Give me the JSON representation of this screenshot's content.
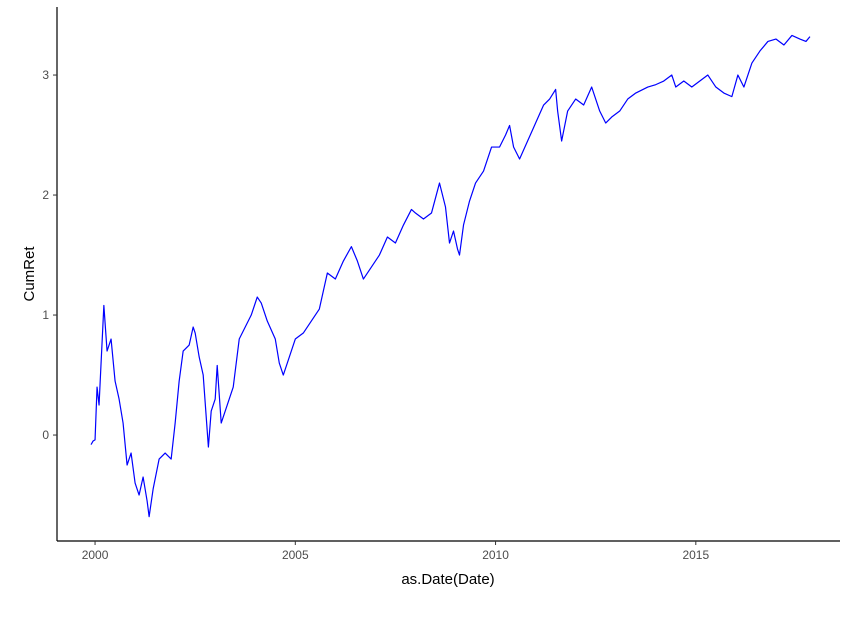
{
  "chart_data": {
    "type": "line",
    "x_label": "as.Date(Date)",
    "y_label": "CumRet",
    "x": [
      1999.9,
      1999.95,
      2000.0,
      2000.05,
      2000.1,
      2000.22,
      2000.3,
      2000.4,
      2000.5,
      2000.6,
      2000.7,
      2000.8,
      2000.9,
      2001.0,
      2001.1,
      2001.2,
      2001.3,
      2001.35,
      2001.45,
      2001.6,
      2001.75,
      2001.9,
      2002.0,
      2002.1,
      2002.2,
      2002.35,
      2002.45,
      2002.5,
      2002.6,
      2002.7,
      2002.83,
      2002.9,
      2003.0,
      2003.05,
      2003.15,
      2003.3,
      2003.45,
      2003.6,
      2003.75,
      2003.9,
      2004.05,
      2004.15,
      2004.3,
      2004.5,
      2004.6,
      2004.7,
      2004.85,
      2005.0,
      2005.2,
      2005.4,
      2005.6,
      2005.8,
      2006.0,
      2006.2,
      2006.4,
      2006.55,
      2006.7,
      2006.9,
      2007.1,
      2007.3,
      2007.5,
      2007.7,
      2007.9,
      2008.0,
      2008.2,
      2008.4,
      2008.6,
      2008.75,
      2008.85,
      2008.95,
      2009.05,
      2009.1,
      2009.2,
      2009.35,
      2009.5,
      2009.7,
      2009.9,
      2010.1,
      2010.25,
      2010.35,
      2010.45,
      2010.6,
      2010.8,
      2011.0,
      2011.2,
      2011.35,
      2011.5,
      2011.55,
      2011.65,
      2011.8,
      2012.0,
      2012.2,
      2012.4,
      2012.6,
      2012.75,
      2012.9,
      2013.1,
      2013.3,
      2013.5,
      2013.8,
      2014.0,
      2014.2,
      2014.4,
      2014.5,
      2014.7,
      2014.9,
      2015.1,
      2015.3,
      2015.5,
      2015.7,
      2015.9,
      2016.05,
      2016.2,
      2016.4,
      2016.6,
      2016.8,
      2017.0,
      2017.2,
      2017.4,
      2017.6,
      2017.75,
      2017.85
    ],
    "series": [
      {
        "color": "#0000ff",
        "values": [
          -0.08,
          -0.05,
          -0.04,
          0.4,
          0.25,
          1.08,
          0.7,
          0.8,
          0.45,
          0.3,
          0.1,
          -0.25,
          -0.15,
          -0.4,
          -0.5,
          -0.35,
          -0.55,
          -0.68,
          -0.45,
          -0.2,
          -0.15,
          -0.2,
          0.1,
          0.45,
          0.7,
          0.75,
          0.9,
          0.85,
          0.65,
          0.5,
          -0.1,
          0.2,
          0.3,
          0.58,
          0.1,
          0.25,
          0.4,
          0.8,
          0.9,
          1.0,
          1.15,
          1.1,
          0.95,
          0.8,
          0.6,
          0.5,
          0.65,
          0.8,
          0.85,
          0.95,
          1.05,
          1.35,
          1.3,
          1.45,
          1.57,
          1.45,
          1.3,
          1.4,
          1.5,
          1.65,
          1.6,
          1.75,
          1.88,
          1.85,
          1.8,
          1.85,
          2.1,
          1.9,
          1.6,
          1.7,
          1.55,
          1.5,
          1.75,
          1.95,
          2.1,
          2.2,
          2.4,
          2.4,
          2.5,
          2.58,
          2.4,
          2.3,
          2.45,
          2.6,
          2.75,
          2.8,
          2.88,
          2.7,
          2.45,
          2.7,
          2.8,
          2.75,
          2.9,
          2.7,
          2.6,
          2.65,
          2.7,
          2.8,
          2.85,
          2.9,
          2.92,
          2.95,
          3.0,
          2.9,
          2.95,
          2.9,
          2.95,
          3.0,
          2.9,
          2.85,
          2.82,
          3.0,
          2.9,
          3.1,
          3.2,
          3.28,
          3.3,
          3.25,
          3.33,
          3.3,
          3.28,
          3.32
        ]
      }
    ],
    "xlim": [
      1999.05,
      2018.6
    ],
    "xticks": [
      2000,
      2005,
      2010,
      2015
    ],
    "ylim": [
      -0.883,
      3.567
    ],
    "yticks": [
      0,
      1,
      2,
      3
    ],
    "grid": false
  }
}
